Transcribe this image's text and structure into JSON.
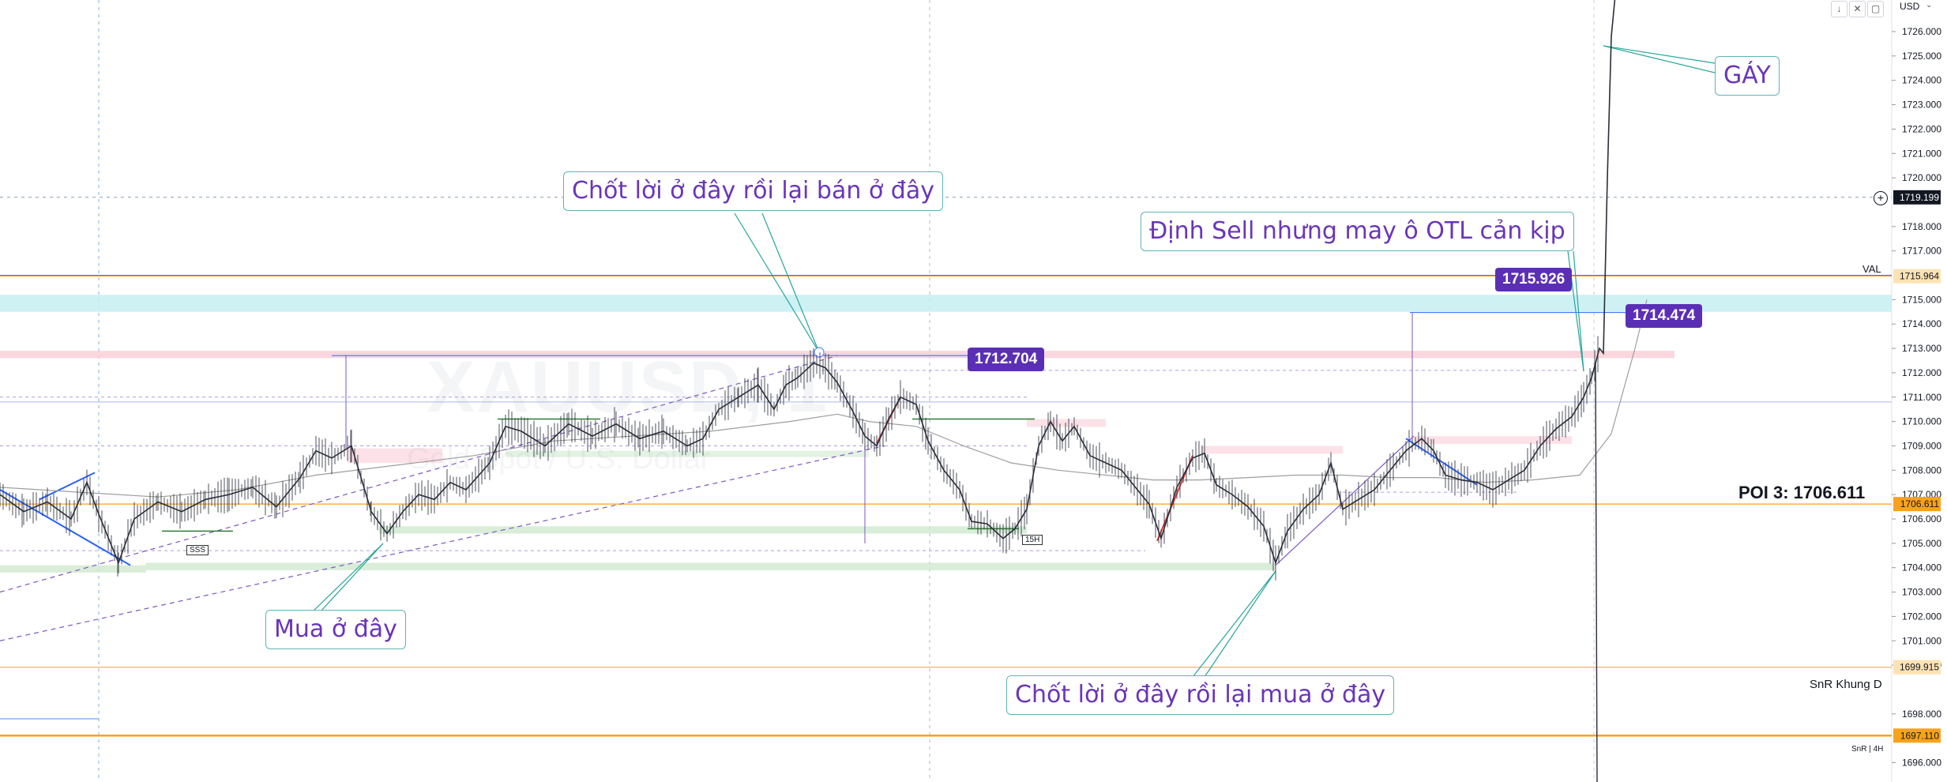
{
  "chart_data": {
    "type": "line",
    "symbol": "XAUUSD",
    "timeframe": "1",
    "description": "Gold Spot / U.S. Dollar",
    "currency": "USD",
    "ylim": [
      1695.5,
      1727.5
    ],
    "ticks": [
      "1726.000",
      "1725.000",
      "1724.000",
      "1723.000",
      "1722.000",
      "1721.000",
      "1720.000",
      "1718.000",
      "1717.000",
      "1715.000",
      "1714.000",
      "1713.000",
      "1712.000",
      "1711.000",
      "1710.000",
      "1709.000",
      "1708.000",
      "1707.000",
      "1706.000",
      "1705.000",
      "1704.000",
      "1703.000",
      "1702.000",
      "1701.000",
      "1700.000",
      "1698.000",
      "1696.000"
    ],
    "price_tags": [
      {
        "value": 1719.199,
        "label": "1719.199",
        "bg": "#131722",
        "fg": "#ffffff"
      },
      {
        "value": 1715.964,
        "label": "1715.964",
        "bg": "#fde2b3",
        "fg": "#131722"
      },
      {
        "value": 1706.611,
        "label": "1706.611",
        "bg": "#f7a21b",
        "fg": "#131722"
      },
      {
        "value": 1699.915,
        "label": "1699.915",
        "bg": "#fde2b3",
        "fg": "#131722"
      },
      {
        "value": 1697.11,
        "label": "1697.110",
        "bg": "#f7a21b",
        "fg": "#131722"
      }
    ],
    "side_labels": {
      "val": "VAL",
      "poi": "POI 3: 1706.611",
      "snr_d": "SnR Khung D",
      "snr_4h": "SnR | 4H"
    },
    "price_boxes": {
      "p1": "1712.704",
      "p2": "1715.926",
      "p3": "1714.474"
    },
    "small_labels": {
      "sss": "SSS",
      "h15": "15H"
    },
    "annotations": {
      "a1": "Chốt lời ở đây rồi lại bán ở đây",
      "a2": "Định Sell nhưng may ô OTL cản kịp",
      "a3": "GÁY",
      "a4": "Mua ở đây",
      "a5": "Chốt lời ở đây rồi lại mua ở đây"
    },
    "price_path": [
      [
        0,
        1707.0
      ],
      [
        30,
        1706.3
      ],
      [
        60,
        1706.7
      ],
      [
        90,
        1706.0
      ],
      [
        110,
        1707.5
      ],
      [
        125,
        1706.2
      ],
      [
        150,
        1704.2
      ],
      [
        170,
        1706.0
      ],
      [
        200,
        1706.7
      ],
      [
        230,
        1706.3
      ],
      [
        260,
        1706.8
      ],
      [
        290,
        1707.0
      ],
      [
        320,
        1707.3
      ],
      [
        350,
        1706.5
      ],
      [
        380,
        1707.7
      ],
      [
        400,
        1708.8
      ],
      [
        420,
        1708.5
      ],
      [
        445,
        1709.0
      ],
      [
        470,
        1706.3
      ],
      [
        490,
        1705.4
      ],
      [
        510,
        1706.3
      ],
      [
        530,
        1707.0
      ],
      [
        550,
        1706.8
      ],
      [
        570,
        1707.5
      ],
      [
        590,
        1707.2
      ],
      [
        620,
        1708.3
      ],
      [
        640,
        1709.8
      ],
      [
        660,
        1709.6
      ],
      [
        690,
        1709.0
      ],
      [
        720,
        1709.9
      ],
      [
        750,
        1709.4
      ],
      [
        780,
        1709.9
      ],
      [
        810,
        1709.3
      ],
      [
        840,
        1709.6
      ],
      [
        870,
        1709.0
      ],
      [
        890,
        1709.3
      ],
      [
        910,
        1710.5
      ],
      [
        935,
        1711.0
      ],
      [
        960,
        1711.5
      ],
      [
        980,
        1710.5
      ],
      [
        995,
        1711.5
      ],
      [
        1010,
        1711.8
      ],
      [
        1030,
        1712.4
      ],
      [
        1045,
        1712.2
      ],
      [
        1060,
        1711.6
      ],
      [
        1080,
        1710.4
      ],
      [
        1095,
        1709.4
      ],
      [
        1110,
        1709.0
      ],
      [
        1125,
        1710.1
      ],
      [
        1140,
        1711.0
      ],
      [
        1160,
        1710.7
      ],
      [
        1175,
        1709.2
      ],
      [
        1195,
        1708.0
      ],
      [
        1215,
        1707.2
      ],
      [
        1230,
        1705.9
      ],
      [
        1250,
        1705.8
      ],
      [
        1270,
        1705.2
      ],
      [
        1285,
        1705.6
      ],
      [
        1300,
        1706.4
      ],
      [
        1315,
        1709.0
      ],
      [
        1330,
        1710.0
      ],
      [
        1345,
        1709.2
      ],
      [
        1360,
        1709.8
      ],
      [
        1380,
        1708.6
      ],
      [
        1400,
        1708.3
      ],
      [
        1420,
        1708.0
      ],
      [
        1440,
        1707.2
      ],
      [
        1455,
        1706.6
      ],
      [
        1470,
        1705.2
      ],
      [
        1490,
        1707.3
      ],
      [
        1510,
        1708.5
      ],
      [
        1525,
        1708.7
      ],
      [
        1540,
        1707.4
      ],
      [
        1560,
        1707.0
      ],
      [
        1580,
        1706.5
      ],
      [
        1600,
        1705.7
      ],
      [
        1615,
        1704.2
      ],
      [
        1630,
        1705.5
      ],
      [
        1650,
        1706.4
      ],
      [
        1670,
        1707.0
      ],
      [
        1685,
        1708.3
      ],
      [
        1700,
        1706.4
      ],
      [
        1720,
        1706.8
      ],
      [
        1740,
        1707.2
      ],
      [
        1760,
        1708.0
      ],
      [
        1780,
        1708.8
      ],
      [
        1800,
        1709.3
      ],
      [
        1815,
        1708.8
      ],
      [
        1830,
        1707.8
      ],
      [
        1850,
        1707.6
      ],
      [
        1870,
        1707.5
      ],
      [
        1890,
        1707.2
      ],
      [
        1910,
        1707.6
      ],
      [
        1930,
        1708.0
      ],
      [
        1950,
        1709.0
      ],
      [
        1970,
        1709.7
      ],
      [
        1990,
        1710.2
      ],
      [
        2005,
        1711.0
      ],
      [
        2015,
        1711.8
      ],
      [
        2025,
        1713.0
      ],
      [
        2030,
        1712.8
      ],
      [
        2035,
        1720.0
      ],
      [
        2040,
        1725.8
      ],
      [
        2045,
        1727.5
      ]
    ],
    "ma_path": [
      [
        0,
        1707.3
      ],
      [
        100,
        1707.1
      ],
      [
        200,
        1706.9
      ],
      [
        300,
        1707.2
      ],
      [
        400,
        1707.8
      ],
      [
        500,
        1708.2
      ],
      [
        600,
        1708.6
      ],
      [
        700,
        1709.2
      ],
      [
        800,
        1709.4
      ],
      [
        900,
        1709.6
      ],
      [
        1000,
        1710.0
      ],
      [
        1060,
        1710.3
      ],
      [
        1100,
        1710.0
      ],
      [
        1160,
        1709.8
      ],
      [
        1220,
        1709.0
      ],
      [
        1280,
        1708.3
      ],
      [
        1340,
        1708.0
      ],
      [
        1400,
        1707.8
      ],
      [
        1460,
        1707.6
      ],
      [
        1520,
        1707.6
      ],
      [
        1580,
        1707.7
      ],
      [
        1640,
        1707.8
      ],
      [
        1700,
        1707.8
      ],
      [
        1760,
        1707.7
      ],
      [
        1820,
        1707.7
      ],
      [
        1880,
        1707.5
      ],
      [
        1940,
        1707.6
      ],
      [
        2000,
        1707.8
      ],
      [
        2040,
        1709.5
      ],
      [
        2070,
        1713.0
      ],
      [
        2085,
        1715.0
      ]
    ]
  }
}
